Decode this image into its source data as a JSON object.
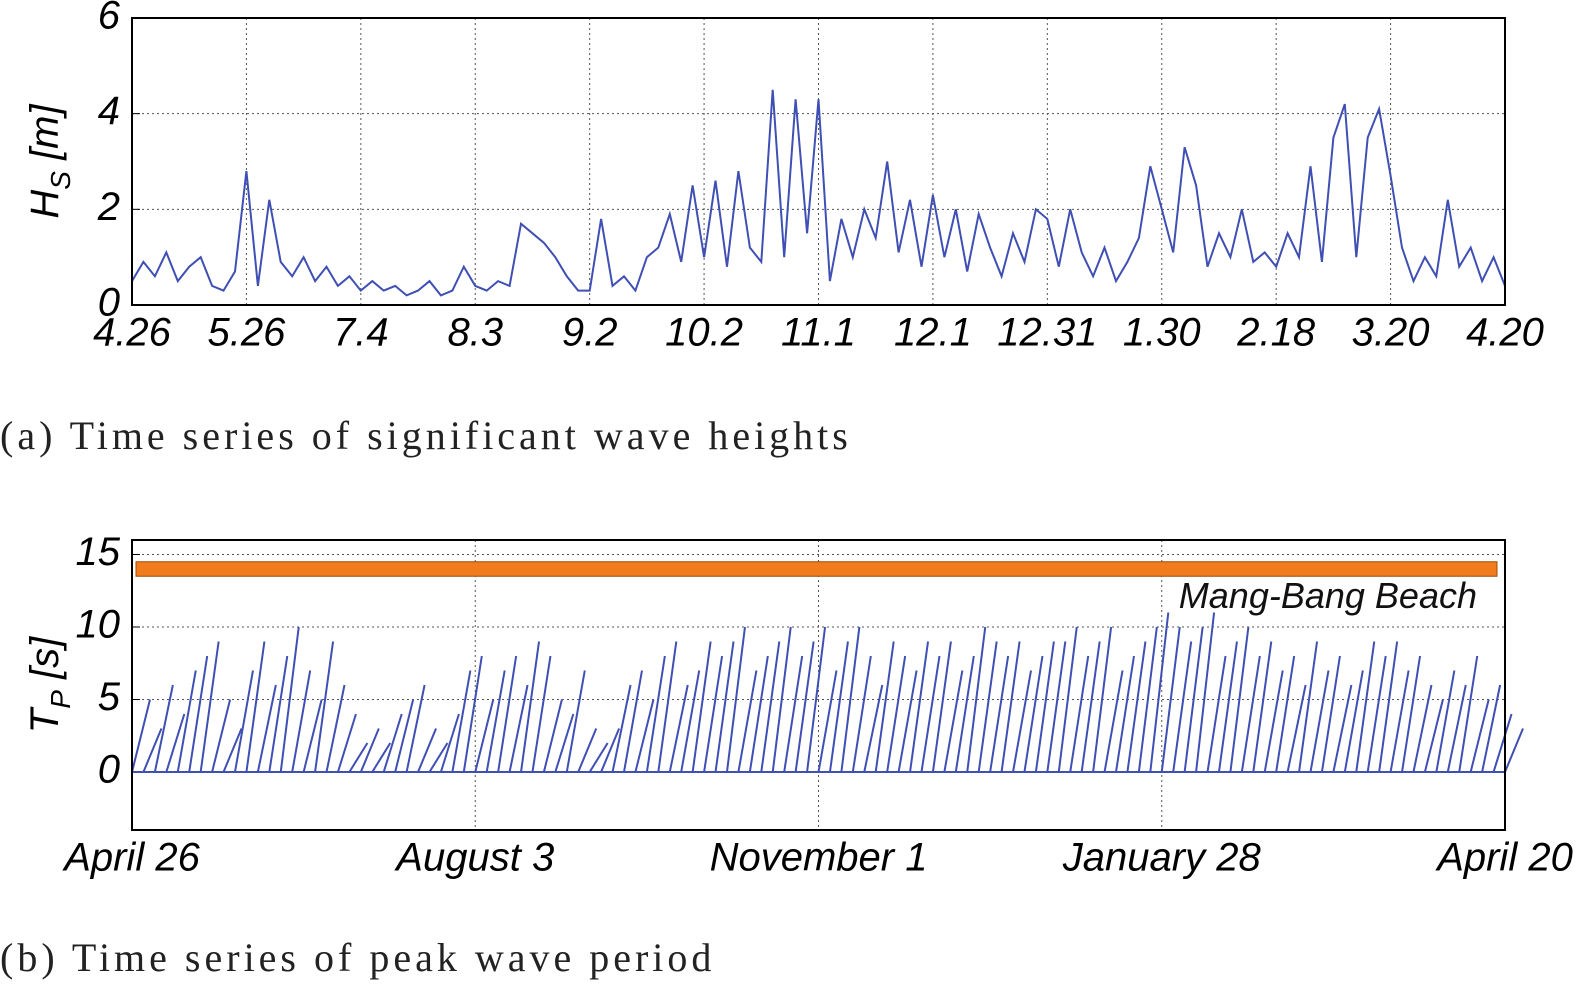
{
  "chart_data": [
    {
      "type": "line",
      "caption": "(a) Time series of significant wave heights",
      "ylabel": {
        "main": "H",
        "sub": "S",
        "unit": " [m]"
      },
      "categories": [
        "4.26",
        null,
        null,
        null,
        null,
        null,
        null,
        null,
        null,
        null,
        "5.26",
        null,
        null,
        null,
        null,
        null,
        null,
        null,
        null,
        null,
        "7.4",
        null,
        null,
        null,
        null,
        null,
        null,
        null,
        null,
        null,
        "8.3",
        null,
        null,
        null,
        null,
        null,
        null,
        null,
        null,
        null,
        "9.2",
        null,
        null,
        null,
        null,
        null,
        null,
        null,
        null,
        null,
        "10.2",
        null,
        null,
        null,
        null,
        null,
        null,
        null,
        null,
        null,
        "11.1",
        null,
        null,
        null,
        null,
        null,
        null,
        null,
        null,
        null,
        "12.1",
        null,
        null,
        null,
        null,
        null,
        null,
        null,
        null,
        null,
        "12.31",
        null,
        null,
        null,
        null,
        null,
        null,
        null,
        null,
        null,
        "1.30",
        null,
        null,
        null,
        null,
        null,
        null,
        null,
        null,
        null,
        "2.18",
        null,
        null,
        null,
        null,
        null,
        null,
        null,
        null,
        null,
        "3.20",
        null,
        null,
        null,
        null,
        null,
        null,
        null,
        null,
        null,
        "4.20"
      ],
      "values": [
        0.5,
        0.9,
        0.6,
        1.1,
        0.5,
        0.8,
        1.0,
        0.4,
        0.3,
        0.7,
        2.8,
        0.4,
        2.2,
        0.9,
        0.6,
        1.0,
        0.5,
        0.8,
        0.4,
        0.6,
        0.3,
        0.5,
        0.3,
        0.4,
        0.2,
        0.3,
        0.5,
        0.2,
        0.3,
        0.8,
        0.4,
        0.3,
        0.5,
        0.4,
        1.7,
        1.5,
        1.3,
        1.0,
        0.6,
        0.3,
        0.3,
        1.8,
        0.4,
        0.6,
        0.3,
        1.0,
        1.2,
        1.9,
        0.9,
        2.5,
        1.0,
        2.6,
        0.8,
        2.8,
        1.2,
        0.9,
        4.5,
        1.0,
        4.3,
        1.5,
        4.3,
        0.5,
        1.8,
        1.0,
        2.0,
        1.4,
        3.0,
        1.1,
        2.2,
        0.8,
        2.3,
        1.0,
        2.0,
        0.7,
        1.9,
        1.2,
        0.6,
        1.5,
        0.9,
        2.0,
        1.8,
        0.8,
        2.0,
        1.1,
        0.6,
        1.2,
        0.5,
        0.9,
        1.4,
        2.9,
        2.0,
        1.1,
        3.3,
        2.5,
        0.8,
        1.5,
        1.0,
        2.0,
        0.9,
        1.1,
        0.8,
        1.5,
        1.0,
        2.9,
        0.9,
        3.5,
        4.2,
        1.0,
        3.5,
        4.1,
        2.7,
        1.2,
        0.5,
        1.0,
        0.6,
        2.2,
        0.8,
        1.2,
        0.5,
        1.0,
        0.4
      ],
      "color": "#3f4fb3",
      "ylim": [
        0,
        6
      ],
      "yticks": [
        0,
        2,
        4,
        6
      ],
      "grid": true
    },
    {
      "type": "stick",
      "caption": "(b) Time series of peak wave period",
      "ylabel": {
        "main": "T",
        "sub": "P",
        "unit": " [s]"
      },
      "categories": [
        "April 26",
        null,
        null,
        null,
        null,
        null,
        null,
        null,
        null,
        null,
        null,
        null,
        null,
        null,
        null,
        null,
        null,
        null,
        null,
        null,
        null,
        null,
        null,
        null,
        null,
        null,
        null,
        null,
        null,
        null,
        "August 3",
        null,
        null,
        null,
        null,
        null,
        null,
        null,
        null,
        null,
        null,
        null,
        null,
        null,
        null,
        null,
        null,
        null,
        null,
        null,
        null,
        null,
        null,
        null,
        null,
        null,
        null,
        null,
        null,
        null,
        "November 1",
        null,
        null,
        null,
        null,
        null,
        null,
        null,
        null,
        null,
        null,
        null,
        null,
        null,
        null,
        null,
        null,
        null,
        null,
        null,
        null,
        null,
        null,
        null,
        null,
        null,
        null,
        null,
        null,
        null,
        "January 28",
        null,
        null,
        null,
        null,
        null,
        null,
        null,
        null,
        null,
        null,
        null,
        null,
        null,
        null,
        null,
        null,
        null,
        null,
        null,
        null,
        null,
        null,
        null,
        null,
        null,
        null,
        null,
        null,
        null,
        "April 20"
      ],
      "values": [
        5,
        3,
        6,
        4,
        7,
        8,
        9,
        5,
        3,
        7,
        9,
        6,
        8,
        10,
        7,
        5,
        9,
        6,
        4,
        2,
        3,
        2,
        4,
        5,
        6,
        3,
        2,
        4,
        7,
        8,
        5,
        7,
        8,
        6,
        9,
        8,
        5,
        4,
        7,
        3,
        2,
        3,
        6,
        7,
        5,
        8,
        9,
        6,
        7,
        9,
        8,
        9,
        10,
        7,
        8,
        9,
        10,
        8,
        9,
        10,
        7,
        9,
        10,
        8,
        6,
        9,
        8,
        7,
        9,
        8,
        9,
        7,
        8,
        10,
        9,
        8,
        9,
        7,
        8,
        9,
        9,
        10,
        8,
        9,
        10,
        7,
        8,
        9,
        10,
        11,
        10,
        9,
        10,
        11,
        8,
        9,
        10,
        8,
        9,
        7,
        8,
        6,
        9,
        7,
        8,
        6,
        7,
        9,
        8,
        9,
        7,
        8,
        6,
        5,
        7,
        6,
        8,
        5,
        6,
        4,
        3
      ],
      "color": "#3f4fb3",
      "ylim": [
        -4,
        16
      ],
      "yticks": [
        0,
        5,
        10,
        15
      ],
      "grid": true,
      "band": {
        "range": [
          13.5,
          14.5
        ],
        "color": "#f07c1e",
        "label": "Mang-Bang Beach"
      }
    }
  ]
}
